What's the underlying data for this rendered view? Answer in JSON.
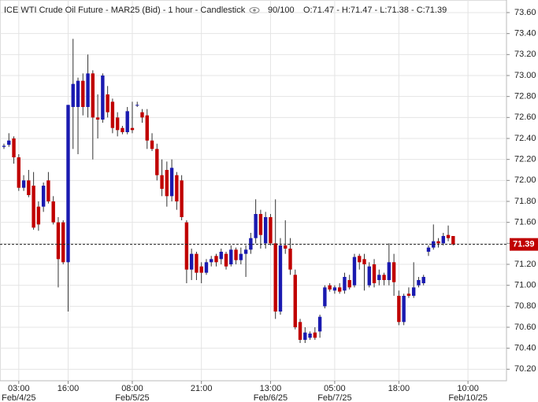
{
  "chart_data": {
    "type": "candlestick",
    "title": "ICE WTI Crude Oil Future - MAR25 (Bid) - 1 hour - Candlestick",
    "counter": "90/100",
    "ohlc_label": "O:71.47 - H:71.47 - L:71.38 - C:71.39",
    "up_color": "#1a1ab0",
    "down_color": "#c00000",
    "grid": true,
    "ylim": [
      70.09,
      73.72
    ],
    "yticks": [
      {
        "value": 70.2,
        "label": "70.20"
      },
      {
        "value": 70.4,
        "label": "70.40"
      },
      {
        "value": 70.6,
        "label": "70.60"
      },
      {
        "value": 70.8,
        "label": "70.80"
      },
      {
        "value": 71.0,
        "label": "71.00"
      },
      {
        "value": 71.2,
        "label": "71.20"
      },
      {
        "value": 71.4,
        "label": "71.40"
      },
      {
        "value": 71.6,
        "label": "71.60"
      },
      {
        "value": 71.8,
        "label": "71.80"
      },
      {
        "value": 72.0,
        "label": "72.00"
      },
      {
        "value": 72.2,
        "label": "72.20"
      },
      {
        "value": 72.4,
        "label": "72.40"
      },
      {
        "value": 72.6,
        "label": "72.60"
      },
      {
        "value": 72.8,
        "label": "72.80"
      },
      {
        "value": 73.0,
        "label": "73.00"
      },
      {
        "value": 73.2,
        "label": "73.20"
      },
      {
        "value": 73.4,
        "label": "73.40"
      },
      {
        "value": 73.6,
        "label": "73.60"
      }
    ],
    "xlim": [
      -0.8,
      101.8
    ],
    "xticks": [
      {
        "value": 3,
        "label": "03:00"
      },
      {
        "value": 13,
        "label": "16:00"
      },
      {
        "value": 26,
        "label": "08:00"
      },
      {
        "value": 40,
        "label": "21:00"
      },
      {
        "value": 54,
        "label": "13:00"
      },
      {
        "value": 67,
        "label": "05:00"
      },
      {
        "value": 80,
        "label": "18:00"
      },
      {
        "value": 94,
        "label": "10:00"
      }
    ],
    "xdates": [
      {
        "value": 3,
        "label": "Feb/4/25"
      },
      {
        "value": 26,
        "label": "Feb/5/25"
      },
      {
        "value": 54,
        "label": "Feb/6/25"
      },
      {
        "value": 67,
        "label": "Feb/7/25"
      },
      {
        "value": 94,
        "label": "Feb/10/25"
      }
    ],
    "last_price": 71.39,
    "open": [
      72.32,
      72.34,
      72.4,
      72.22,
      71.93,
      72.0,
      71.95,
      71.75,
      71.75,
      72.0,
      71.8,
      71.6,
      71.6,
      71.22,
      72.7,
      72.7,
      72.95,
      72.7,
      73.02,
      72.6,
      72.58,
      72.82,
      72.75,
      72.6,
      72.5,
      72.46,
      72.5,
      72.72,
      72.65,
      72.62,
      72.38,
      72.3,
      72.05,
      72.1,
      71.85,
      72.05,
      72.0,
      71.6,
      71.15,
      71.3,
      71.18,
      71.12,
      71.22,
      71.28,
      71.25,
      71.3,
      71.2,
      71.34,
      71.24,
      71.3,
      71.34,
      71.45,
      71.68,
      71.4,
      71.65,
      71.4,
      70.75,
      71.38,
      71.35,
      71.1,
      70.65,
      70.48,
      70.5,
      70.55,
      70.56,
      70.8,
      71.0,
      70.95,
      70.98,
      70.95,
      71.05,
      71.0,
      71.28,
      71.25,
      71.0,
      71.2,
      71.05,
      71.1,
      71.05,
      71.22,
      70.9,
      70.65,
      70.92,
      70.9,
      71.0,
      71.02,
      71.32,
      71.36,
      71.42,
      71.4,
      71.48,
      71.47
    ],
    "high": [
      72.35,
      72.45,
      72.42,
      72.25,
      72.05,
      72.1,
      72.08,
      71.8,
      71.98,
      72.08,
      71.85,
      71.65,
      71.62,
      72.72,
      73.35,
      72.98,
      73.02,
      73.2,
      73.05,
      72.82,
      73.02,
      72.9,
      72.78,
      72.65,
      72.52,
      72.7,
      72.75,
      72.75,
      72.68,
      72.68,
      72.45,
      72.35,
      72.2,
      72.18,
      72.2,
      72.08,
      72.05,
      71.62,
      71.35,
      71.32,
      71.22,
      71.25,
      71.28,
      71.3,
      71.35,
      71.32,
      71.38,
      71.36,
      71.36,
      71.38,
      71.5,
      71.82,
      71.72,
      71.7,
      71.68,
      71.82,
      71.45,
      71.62,
      71.45,
      71.15,
      70.68,
      70.6,
      70.56,
      70.6,
      70.72,
      71.0,
      71.02,
      71.0,
      71.02,
      71.12,
      71.1,
      71.3,
      71.3,
      71.3,
      71.22,
      71.25,
      71.15,
      71.12,
      71.4,
      71.3,
      70.95,
      70.92,
      70.98,
      71.22,
      71.08,
      71.1,
      71.38,
      71.58,
      71.45,
      71.5,
      71.57,
      71.47
    ],
    "low": [
      72.3,
      72.32,
      72.16,
      71.9,
      71.9,
      71.84,
      71.53,
      71.52,
      71.7,
      71.78,
      71.58,
      70.98,
      71.2,
      70.75,
      72.3,
      72.25,
      72.62,
      72.6,
      72.2,
      72.4,
      72.55,
      72.6,
      72.45,
      72.42,
      72.44,
      72.44,
      72.45,
      72.7,
      72.55,
      72.3,
      72.28,
      72.0,
      71.85,
      71.75,
      71.8,
      71.72,
      71.62,
      71.02,
      71.05,
      71.05,
      71.02,
      71.1,
      71.18,
      71.18,
      71.2,
      71.15,
      71.18,
      71.2,
      71.2,
      71.08,
      71.3,
      71.4,
      71.35,
      71.35,
      71.38,
      70.68,
      70.72,
      71.3,
      71.1,
      70.58,
      70.45,
      70.45,
      70.48,
      70.48,
      70.5,
      70.78,
      70.94,
      70.92,
      70.92,
      70.92,
      70.96,
      70.98,
      71.15,
      70.95,
      70.98,
      70.98,
      71.0,
      71.0,
      71.0,
      70.9,
      70.62,
      70.62,
      70.88,
      70.88,
      70.98,
      71.0,
      71.28,
      71.34,
      71.36,
      71.38,
      71.42,
      71.38
    ],
    "close": [
      72.33,
      72.38,
      72.22,
      71.93,
      72.0,
      71.86,
      71.55,
      71.58,
      71.95,
      71.8,
      71.6,
      71.25,
      71.22,
      72.72,
      72.92,
      72.95,
      72.7,
      73.02,
      72.6,
      72.58,
      73.0,
      72.65,
      72.5,
      72.48,
      72.46,
      72.66,
      72.48,
      72.72,
      72.6,
      72.38,
      72.3,
      72.05,
      71.92,
      71.85,
      72.12,
      71.8,
      71.65,
      71.15,
      71.3,
      71.12,
      71.12,
      71.22,
      71.25,
      71.22,
      71.32,
      71.18,
      71.34,
      71.24,
      71.3,
      71.34,
      71.45,
      71.68,
      71.48,
      71.65,
      71.4,
      70.75,
      71.38,
      71.35,
      71.15,
      70.6,
      70.48,
      70.55,
      70.54,
      70.5,
      70.7,
      70.98,
      70.96,
      70.98,
      70.94,
      71.08,
      70.98,
      71.27,
      71.22,
      71.2,
      71.18,
      71.02,
      71.1,
      71.05,
      71.22,
      71.03,
      70.65,
      70.9,
      70.9,
      70.98,
      71.05,
      71.08,
      71.36,
      71.42,
      71.4,
      71.47,
      71.45,
      71.39
    ]
  }
}
